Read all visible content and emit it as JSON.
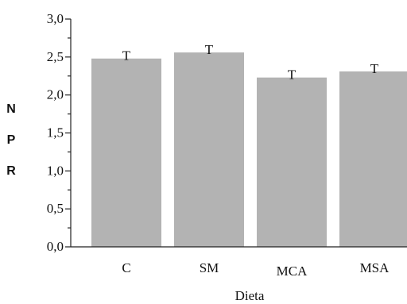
{
  "chart_data": {
    "type": "bar",
    "categories": [
      "C",
      "SM",
      "MCA",
      "MSA"
    ],
    "values": [
      2.48,
      2.56,
      2.23,
      2.31
    ],
    "error_marker": "T",
    "xlabel": "Dieta",
    "ylabel_letters": [
      "N",
      "P",
      "R"
    ],
    "ylim": [
      0,
      3
    ],
    "yticks": [
      "0,0",
      "0,5",
      "1,0",
      "1,5",
      "2,0",
      "2,5",
      "3,0"
    ],
    "grid": false,
    "legend": "none",
    "bar_color": "#b3b3b3"
  }
}
